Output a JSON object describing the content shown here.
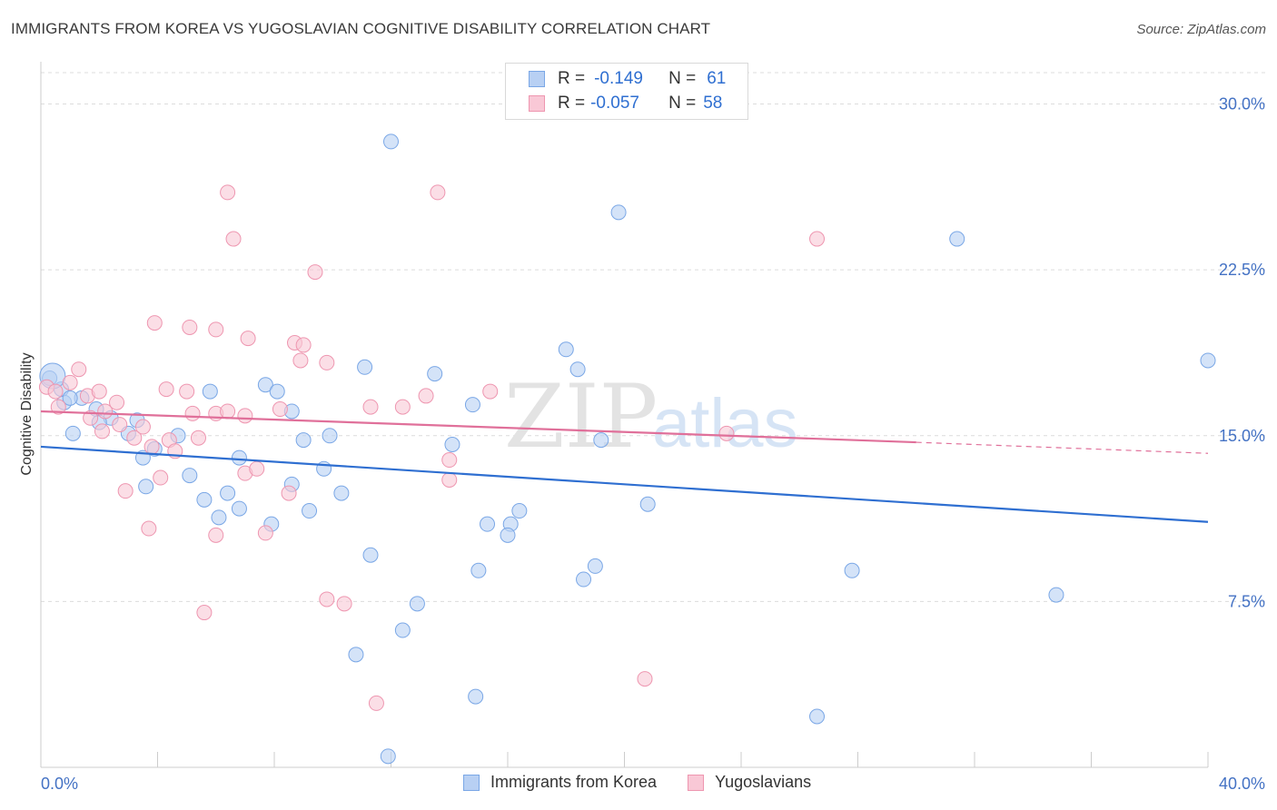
{
  "header": {
    "title": "IMMIGRANTS FROM KOREA VS YUGOSLAVIAN COGNITIVE DISABILITY CORRELATION CHART",
    "source": "Source: ZipAtlas.com"
  },
  "legend": {
    "rows": [
      {
        "r_label": "R =",
        "r_value": "-0.149",
        "n_label": "N =",
        "n_value": "61"
      },
      {
        "r_label": "R =",
        "r_value": "-0.057",
        "n_label": "N =",
        "n_value": "58"
      }
    ]
  },
  "watermark": {
    "zip": "ZIP",
    "atlas": "atlas"
  },
  "colors": {
    "korea_fill": "#b8d0f3",
    "korea_stroke": "#7aa7e6",
    "korea_line": "#2f6fd1",
    "yugo_fill": "#f9c8d6",
    "yugo_stroke": "#ee96b0",
    "yugo_line": "#e0709a",
    "tick_text": "#4472c4",
    "grid": "#dcdcdc"
  },
  "chart_data": {
    "type": "scatter",
    "title": "IMMIGRANTS FROM KOREA VS YUGOSLAVIAN COGNITIVE DISABILITY CORRELATION CHART",
    "xlabel": "",
    "ylabel": "Cognitive Disability",
    "xlim": [
      0,
      40
    ],
    "ylim": [
      0,
      31.5
    ],
    "x_tick_labels": [
      "0.0%",
      "40.0%"
    ],
    "y_ticks": [
      7.5,
      15.0,
      22.5,
      30.0
    ],
    "y_tick_labels": [
      "7.5%",
      "15.0%",
      "22.5%",
      "30.0%"
    ],
    "grid": "horizontal dashed",
    "legend_position": "top-center",
    "series": [
      {
        "name": "Immigrants from Korea",
        "points": [
          [
            0.3,
            17.6
          ],
          [
            0.8,
            16.5
          ],
          [
            0.7,
            17.1
          ],
          [
            1.4,
            16.7
          ],
          [
            1.9,
            16.2
          ],
          [
            2.4,
            15.8
          ],
          [
            3.3,
            15.7
          ],
          [
            2.0,
            15.6
          ],
          [
            1.1,
            15.1
          ],
          [
            3.0,
            15.1
          ],
          [
            4.7,
            15.0
          ],
          [
            3.9,
            14.4
          ],
          [
            3.5,
            14.0
          ],
          [
            5.8,
            17.0
          ],
          [
            7.7,
            17.3
          ],
          [
            8.1,
            17.0
          ],
          [
            8.6,
            16.1
          ],
          [
            11.1,
            18.1
          ],
          [
            13.5,
            17.8
          ],
          [
            18.0,
            18.9
          ],
          [
            18.4,
            18.0
          ],
          [
            14.8,
            16.4
          ],
          [
            9.0,
            14.8
          ],
          [
            9.9,
            15.0
          ],
          [
            14.1,
            14.6
          ],
          [
            19.2,
            14.8
          ],
          [
            5.1,
            13.2
          ],
          [
            6.8,
            14.0
          ],
          [
            9.7,
            13.5
          ],
          [
            3.6,
            12.7
          ],
          [
            8.6,
            12.8
          ],
          [
            6.4,
            12.4
          ],
          [
            10.3,
            12.4
          ],
          [
            5.6,
            12.1
          ],
          [
            6.8,
            11.7
          ],
          [
            6.1,
            11.3
          ],
          [
            7.9,
            11.0
          ],
          [
            9.2,
            11.6
          ],
          [
            15.3,
            11.0
          ],
          [
            16.1,
            11.0
          ],
          [
            16.4,
            11.6
          ],
          [
            20.8,
            11.9
          ],
          [
            16.0,
            10.5
          ],
          [
            11.3,
            9.6
          ],
          [
            15.0,
            8.9
          ],
          [
            19.0,
            9.1
          ],
          [
            18.6,
            8.5
          ],
          [
            27.8,
            8.9
          ],
          [
            34.8,
            7.8
          ],
          [
            12.9,
            7.4
          ],
          [
            12.4,
            6.2
          ],
          [
            10.8,
            5.1
          ],
          [
            14.9,
            3.2
          ],
          [
            26.6,
            2.3
          ],
          [
            11.9,
            0.5
          ],
          [
            12.0,
            28.3
          ],
          [
            19.8,
            25.1
          ],
          [
            31.4,
            23.9
          ],
          [
            40.0,
            18.4
          ],
          [
            0.4,
            17.7
          ],
          [
            1.0,
            16.7
          ]
        ]
      },
      {
        "name": "Yugoslavians",
        "points": [
          [
            0.2,
            17.2
          ],
          [
            0.6,
            16.3
          ],
          [
            1.0,
            17.4
          ],
          [
            1.3,
            18.0
          ],
          [
            1.6,
            16.8
          ],
          [
            2.0,
            17.0
          ],
          [
            2.1,
            15.2
          ],
          [
            2.6,
            16.5
          ],
          [
            2.7,
            15.5
          ],
          [
            3.2,
            14.9
          ],
          [
            3.8,
            14.5
          ],
          [
            4.4,
            14.8
          ],
          [
            4.6,
            14.3
          ],
          [
            4.3,
            17.1
          ],
          [
            5.0,
            17.0
          ],
          [
            5.4,
            14.9
          ],
          [
            6.0,
            16.0
          ],
          [
            6.4,
            16.1
          ],
          [
            7.0,
            15.9
          ],
          [
            8.2,
            16.2
          ],
          [
            8.7,
            19.2
          ],
          [
            9.0,
            19.1
          ],
          [
            8.9,
            18.4
          ],
          [
            9.8,
            18.3
          ],
          [
            7.1,
            19.4
          ],
          [
            6.0,
            19.8
          ],
          [
            5.1,
            19.9
          ],
          [
            3.9,
            20.1
          ],
          [
            12.4,
            16.3
          ],
          [
            13.2,
            16.8
          ],
          [
            14.0,
            13.9
          ],
          [
            15.4,
            17.0
          ],
          [
            11.3,
            16.3
          ],
          [
            8.5,
            12.4
          ],
          [
            4.1,
            13.1
          ],
          [
            2.9,
            12.5
          ],
          [
            3.7,
            10.8
          ],
          [
            7.0,
            13.3
          ],
          [
            6.0,
            10.5
          ],
          [
            7.7,
            10.6
          ],
          [
            9.8,
            7.6
          ],
          [
            10.4,
            7.4
          ],
          [
            5.6,
            7.0
          ],
          [
            11.5,
            2.9
          ],
          [
            20.7,
            4.0
          ],
          [
            14.0,
            13.0
          ],
          [
            23.5,
            15.1
          ],
          [
            6.6,
            23.9
          ],
          [
            6.4,
            26.0
          ],
          [
            9.4,
            22.4
          ],
          [
            13.6,
            26.0
          ],
          [
            26.6,
            23.9
          ],
          [
            0.5,
            17.0
          ],
          [
            1.7,
            15.8
          ],
          [
            2.2,
            16.1
          ],
          [
            5.2,
            16.0
          ],
          [
            7.4,
            13.5
          ],
          [
            3.5,
            15.4
          ]
        ]
      }
    ],
    "trend_lines": [
      {
        "name": "Immigrants from Korea",
        "x": [
          0,
          40
        ],
        "y": [
          14.5,
          11.1
        ]
      },
      {
        "name": "Yugoslavians",
        "x": [
          0,
          30
        ],
        "y": [
          16.1,
          14.7
        ],
        "dashed_to": [
          40,
          14.2
        ]
      }
    ]
  },
  "bottom_legend": {
    "items": [
      "Immigrants from Korea",
      "Yugoslavians"
    ]
  }
}
